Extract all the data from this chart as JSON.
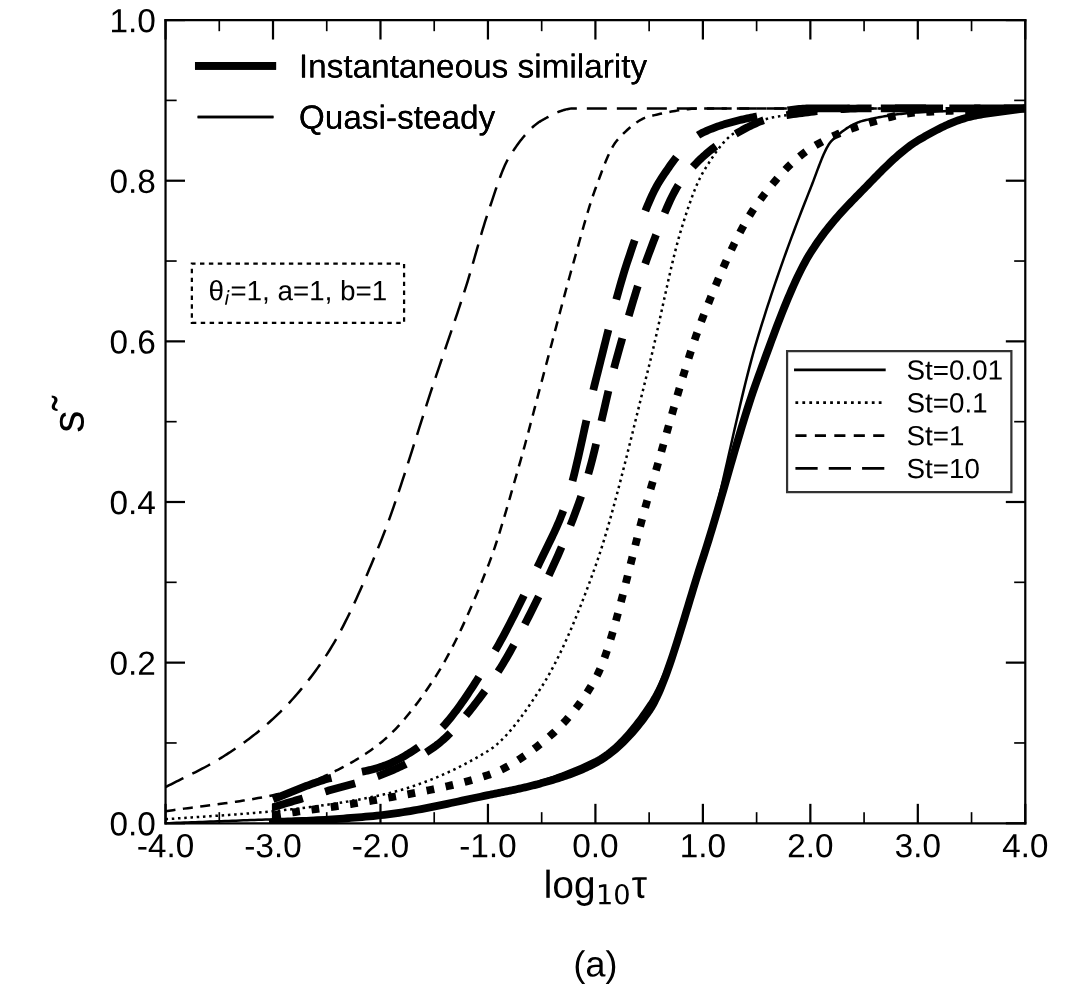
{
  "chart_data": {
    "type": "line",
    "xlabel": "log$_{10}$τ",
    "ylabel": "s̃",
    "annotations": [
      "Instantaneous similarity",
      "Quasi-steady",
      "θ$_{i}$=1, a=1, b=1",
      "(a)"
    ],
    "xlim": [
      -4,
      4
    ],
    "ylim": [
      0,
      1
    ],
    "xticks": [
      {
        "value": -4,
        "label": "-4.0"
      },
      {
        "value": -3,
        "label": "-3.0"
      },
      {
        "value": -2,
        "label": "-2.0"
      },
      {
        "value": -1,
        "label": "-1.0"
      },
      {
        "value": 0,
        "label": "0.0"
      },
      {
        "value": 1,
        "label": "1.0"
      },
      {
        "value": 2,
        "label": "2.0"
      },
      {
        "value": 3,
        "label": "3.0"
      },
      {
        "value": 4,
        "label": "4.0"
      }
    ],
    "yticks": [
      {
        "value": 0,
        "label": "0.0"
      },
      {
        "value": 0.2,
        "label": "0.2"
      },
      {
        "value": 0.4,
        "label": "0.4"
      },
      {
        "value": 0.6,
        "label": "0.6"
      },
      {
        "value": 0.8,
        "label": "0.8"
      },
      {
        "value": 1,
        "label": "1.0"
      }
    ],
    "grid": false,
    "legend": "right",
    "marker": "none",
    "series": [
      {
        "line_style": "solid",
        "color": "#000000",
        "x": [
          -3,
          -2,
          -1,
          -0.5,
          0,
          0.5,
          1.0,
          1.5,
          2.0,
          2.5,
          3.0,
          3.5,
          4.0
        ],
        "values": [
          0.0,
          0.01,
          0.035,
          0.05,
          0.075,
          0.14,
          0.33,
          0.55,
          0.71,
          0.79,
          0.85,
          0.88,
          0.89
        ]
      },
      {
        "line_style": "dotted",
        "color": "#000000",
        "x": [
          -3,
          -2,
          -1,
          -0.5,
          0,
          0.5,
          1.0,
          1.5,
          2.0,
          2.5,
          3,
          4
        ],
        "values": [
          0.01,
          0.03,
          0.06,
          0.1,
          0.18,
          0.41,
          0.63,
          0.77,
          0.84,
          0.87,
          0.885,
          0.89
        ]
      },
      {
        "line_style": "dashed",
        "color": "#000000",
        "x": [
          -3,
          -2.5,
          -2,
          -1.5,
          -1,
          -0.5,
          -0.1,
          0.2,
          0.5,
          0.8,
          1.2,
          1.7,
          2.5,
          4
        ],
        "values": [
          0.02,
          0.04,
          0.06,
          0.095,
          0.17,
          0.29,
          0.42,
          0.58,
          0.71,
          0.8,
          0.85,
          0.88,
          0.89,
          0.89
        ]
      },
      {
        "line_style": "long-dashed",
        "color": "#000000",
        "x": [
          -3,
          -2.5,
          -2,
          -1.5,
          -1,
          -0.5,
          -0.27,
          0,
          0.3,
          0.6,
          1.0,
          1.5,
          2,
          4
        ],
        "values": [
          0.03,
          0.055,
          0.07,
          0.11,
          0.2,
          0.33,
          0.4,
          0.55,
          0.7,
          0.8,
          0.86,
          0.88,
          0.89,
          0.89
        ]
      },
      {
        "name": "St=0.01",
        "line_style": "solid",
        "color": "#000000",
        "x": [
          -4,
          -3,
          -2,
          -1,
          0,
          0.5,
          1.0,
          1.5,
          2.0,
          2.2,
          2.5,
          3,
          4
        ],
        "values": [
          0.0,
          0.005,
          0.01,
          0.035,
          0.08,
          0.15,
          0.33,
          0.6,
          0.79,
          0.85,
          0.875,
          0.885,
          0.89
        ]
      },
      {
        "name": "St=0.1",
        "line_style": "dotted",
        "color": "#000000",
        "x": [
          -4,
          -3,
          -2,
          -1,
          -0.5,
          0,
          0.5,
          0.8,
          1.0,
          1.3,
          1.7,
          2.5,
          4
        ],
        "values": [
          0.005,
          0.015,
          0.035,
          0.09,
          0.17,
          0.32,
          0.57,
          0.74,
          0.81,
          0.86,
          0.88,
          0.89,
          0.89
        ]
      },
      {
        "name": "St=1",
        "line_style": "dashed",
        "color": "#000000",
        "x": [
          -4,
          -3,
          -2.5,
          -2,
          -1.5,
          -1,
          -0.7,
          -0.5,
          -0.2,
          0,
          0.2,
          0.5,
          1,
          4
        ],
        "values": [
          0.015,
          0.035,
          0.06,
          0.1,
          0.18,
          0.32,
          0.45,
          0.55,
          0.7,
          0.79,
          0.85,
          0.88,
          0.89,
          0.89
        ]
      },
      {
        "name": "St=10",
        "line_style": "long-dashed",
        "color": "#000000",
        "x": [
          -4,
          -3.5,
          -3,
          -2.5,
          -2,
          -1.5,
          -1.2,
          -1,
          -0.8,
          -0.5,
          -0.2,
          4
        ],
        "values": [
          0.045,
          0.08,
          0.13,
          0.21,
          0.35,
          0.55,
          0.67,
          0.76,
          0.83,
          0.875,
          0.89,
          0.89
        ]
      }
    ]
  }
}
